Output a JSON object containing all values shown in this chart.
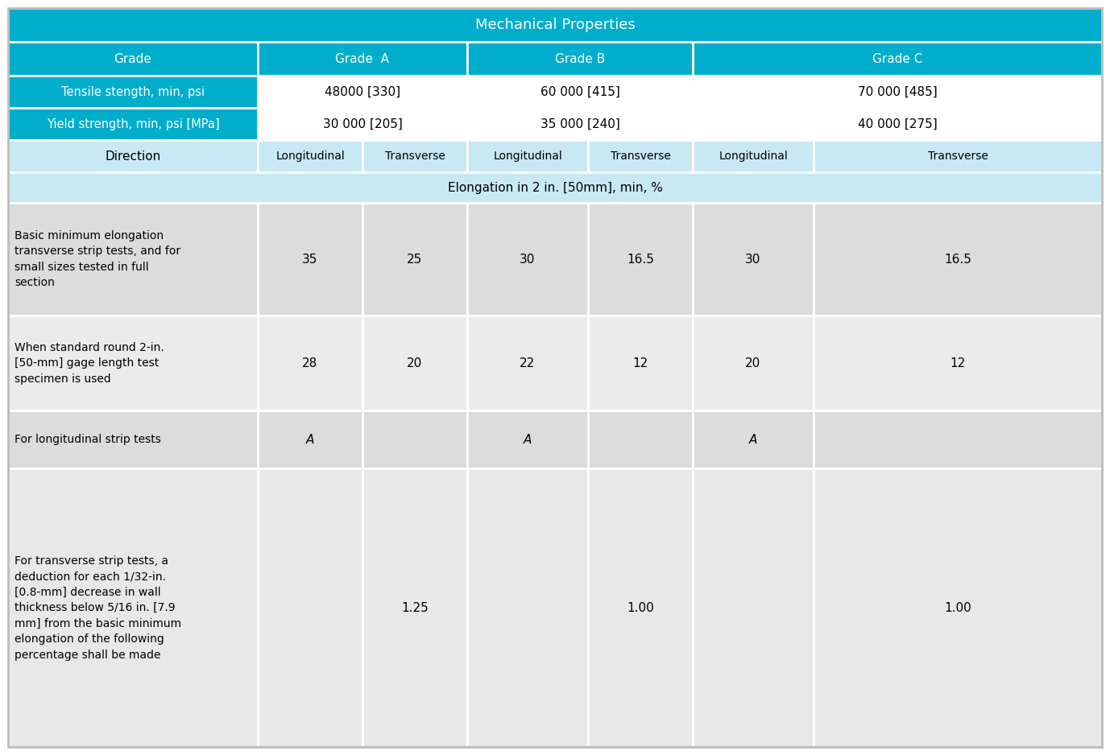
{
  "title": "Mechanical Properties",
  "header_bg": "#00AECC",
  "white_bg": "#FFFFFF",
  "light_blue_bg": "#C8E8F4",
  "data_row_bg1": "#DCDCDC",
  "data_row_bg2": "#E8E8E8",
  "border_color": "#FFFFFF",
  "grades": [
    "Grade  A",
    "Grade B",
    "Grade C"
  ],
  "tensile": [
    "48000 [330]",
    "60 000 [415]",
    "70 000 [485]"
  ],
  "yield_str": [
    "30 000 [205]",
    "35 000 [240]",
    "40 000 [275]"
  ],
  "directions": [
    "Longitudinal",
    "Transverse",
    "Longitudinal",
    "Transverse",
    "Longitudinal",
    "Transverse"
  ],
  "elongation_header": "Elongation in 2 in. [50mm], min, %",
  "rows": [
    {
      "label": "Basic minimum elongation\ntransverse strip tests, and for\nsmall sizes tested in full\nsection",
      "values": [
        "35",
        "25",
        "30",
        "16.5",
        "30",
        "16.5"
      ],
      "bg": "#DCDCDC"
    },
    {
      "label": "When standard round 2-in.\n[50-mm] gage length test\nspecimen is used",
      "values": [
        "28",
        "20",
        "22",
        "12",
        "20",
        "12"
      ],
      "bg": "#EBEBEB"
    },
    {
      "label": "For longitudinal strip tests",
      "values": [
        "A",
        "",
        "A",
        "",
        "A",
        ""
      ],
      "bg": "#DCDCDC",
      "italic_vals": true
    },
    {
      "label": "For transverse strip tests, a\ndeduction for each 1/32-in.\n[0.8-mm] decrease in wall\nthickness below 5/16 in. [7.9\nmm] from the basic minimum\nelongation of the following\npercentage shall be made",
      "values": [
        "",
        "1.25",
        "",
        "1.00",
        "",
        "1.00"
      ],
      "bg": "#E8E8E8"
    }
  ],
  "figure_bg": "#FFFFFF",
  "outer_border": "#BBBBBB"
}
